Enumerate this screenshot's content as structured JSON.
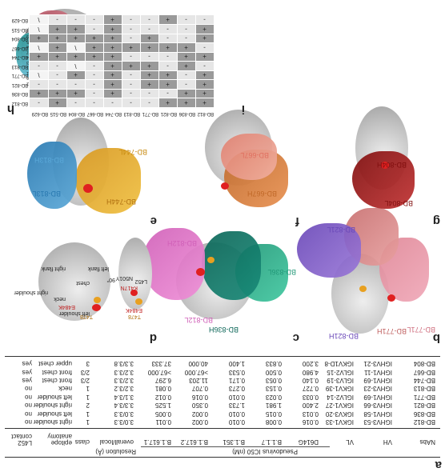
{
  "panel_labels": {
    "a": "a",
    "b": "b",
    "c": "c",
    "d": "d",
    "e": "e",
    "f": "f",
    "g": "g",
    "h": "h",
    "i": "i"
  },
  "table": {
    "headers": {
      "nabs": "NAbs",
      "vh": "VH",
      "vl": "VL",
      "d614g": "D614G",
      "b117": "B.1.1.7",
      "b1351": "B.1.351",
      "b16172": "B.1.617.2",
      "b16171": "B.1.617.1",
      "pseudovirus_group": "Pseudovirus IC50 (nM)",
      "resolution_group": "Resolution (Å)",
      "overall_local": "overall/local",
      "class": "class",
      "epitope": "epitope anatomy",
      "l452": "L452 contact"
    },
    "rows": [
      [
        "BD-812",
        "IGHV3-53",
        "IGKV1-33",
        "0.016",
        "0.008",
        "0.010",
        "0.002",
        "0.011",
        "3.0/3.3",
        "1",
        "right shoulder",
        "no"
      ],
      [
        "BD-836",
        "IGHV1-58",
        "IGKV3-20",
        "0.013",
        "0.015",
        "0.010",
        "0.002",
        "0.005",
        "3.0/3.3",
        "1",
        "left shoulder",
        "no"
      ],
      [
        "BD-821",
        "IGHV3-66",
        "IGKV1-27",
        "2.400",
        "1.981",
        "1.733",
        "0.350",
        "1.525",
        "3.3/3.4",
        "2",
        "right shoulder",
        "no"
      ],
      [
        "BD-771",
        "IGHV1-69",
        "IGLV2-14",
        "0.033",
        "0.023",
        "0.010",
        "0.016",
        "0.012",
        "3.1/3.4",
        "1",
        "left shoulder",
        "no"
      ],
      [
        "BD-813",
        "IGHV3-23",
        "IGKV1-39",
        "0.727",
        "0.153",
        "0.273",
        "0.707",
        "0.081",
        "3.2/3.2",
        "1",
        "neck",
        "no"
      ],
      [
        "BD-744",
        "IGHV1-69",
        "IGLV3-19",
        "0.140",
        "0.053",
        "0.171",
        "11.203",
        "6.297",
        "3.2/3.3",
        "2/3",
        "front chest",
        "yes"
      ],
      [
        "BD-667",
        "IGHV1-11",
        "IGLV2-15",
        "4.980",
        "0.500",
        "0.533",
        ">67.000",
        ">67.000",
        "3.2/3.3",
        "2/3",
        "front chest",
        "yes"
      ],
      [
        "BD-804",
        "IGHV3-21",
        "IGKV1D-8",
        "3.200",
        "0.833",
        "1.400",
        "40.000",
        "37.333",
        "3.3/3.8",
        "3",
        "upper chest",
        "yes"
      ]
    ]
  },
  "panel_b": {
    "heavy": "BD-812H",
    "light": "BD-812L",
    "heavy2": "BD-836H",
    "light2": "BD-836L"
  },
  "panel_c": {
    "heavy": "BD-821H",
    "light": "BD-821L",
    "heavy2": "BD-771H",
    "light2": "BD-771L"
  },
  "panel_d": {
    "labels": [
      "left flank",
      "right flank",
      "right shoulder",
      "left shoulder",
      "neck",
      "chest",
      "L452",
      "E484K",
      "T478",
      "K417N",
      "N501Y",
      "E484K",
      "T478"
    ],
    "rotation": "90°"
  },
  "panel_e": {
    "heavy": "BD-813H",
    "light": "BD-813L",
    "heavy2": "BD-744H",
    "light2": "BD-744L"
  },
  "panel_f": {
    "heavy": "BD-667H",
    "light": "BD-667L"
  },
  "panel_g": {
    "heavy": "BD-804H",
    "light": "BD-804L"
  },
  "panel_h": {
    "legend": [
      "BD-812",
      "BD-836",
      "BD-821",
      "BD-771",
      "BD-813",
      "BD-744",
      "BD-667",
      "BD-804",
      "BD-515",
      "BD-629"
    ],
    "colors": [
      "#c084d8",
      "#20908c",
      "#7b55c8",
      "#e0909a",
      "#5ab0e0",
      "#e8a040",
      "#c8742c",
      "#9c1c1c",
      "#a05050",
      "#d8c8d8"
    ]
  },
  "heatmap": {
    "rows": [
      "BD-812",
      "BD-836",
      "BD-821",
      "BD-771",
      "BD-813",
      "BD-744",
      "BD-667",
      "BD-804",
      "BD-515",
      "BD-629"
    ],
    "cols": [
      "BD-812",
      "BD-836",
      "BD-821",
      "BD-771",
      "BD-813",
      "BD-744",
      "BD-667",
      "BD-804",
      "BD-515",
      "BD-629"
    ],
    "values": [
      [
        "+",
        "+",
        "+",
        "-",
        "-",
        "-",
        "-",
        "-",
        "+",
        "-"
      ],
      [
        "+",
        "+",
        "-",
        "-",
        "-",
        "+",
        "-",
        "+",
        "+",
        "+"
      ],
      [
        "+",
        "-",
        "+",
        "+",
        "-",
        "+",
        "-",
        "-",
        "-",
        "-"
      ],
      [
        "+",
        "-",
        "+",
        "+",
        "-",
        "+",
        "-",
        "+",
        "-",
        "\\"
      ],
      [
        "-",
        "+",
        "-",
        "+",
        "+",
        "+",
        "-",
        "\\",
        "-",
        "-"
      ],
      [
        "+",
        "+",
        "-",
        "-",
        "-",
        "+",
        "+",
        "+",
        "+",
        "+"
      ],
      [
        "-",
        "+",
        "+",
        "+",
        "+",
        "+",
        "+",
        "\\",
        "+",
        "\\"
      ],
      [
        "+",
        "-",
        "-",
        "+",
        "-",
        "+",
        "+",
        "+",
        "+",
        "+"
      ],
      [
        "+",
        "-",
        "-",
        "-",
        "-",
        "+",
        "-",
        "+",
        "+",
        "\\"
      ],
      [
        "-",
        "-",
        "+",
        "-",
        "-",
        "+",
        "-",
        "-",
        "-",
        "\\"
      ]
    ],
    "colors": {
      "plus": "#9a9a9a",
      "minus": "#e6e6e6",
      "slash": "#f4f4f4"
    }
  }
}
